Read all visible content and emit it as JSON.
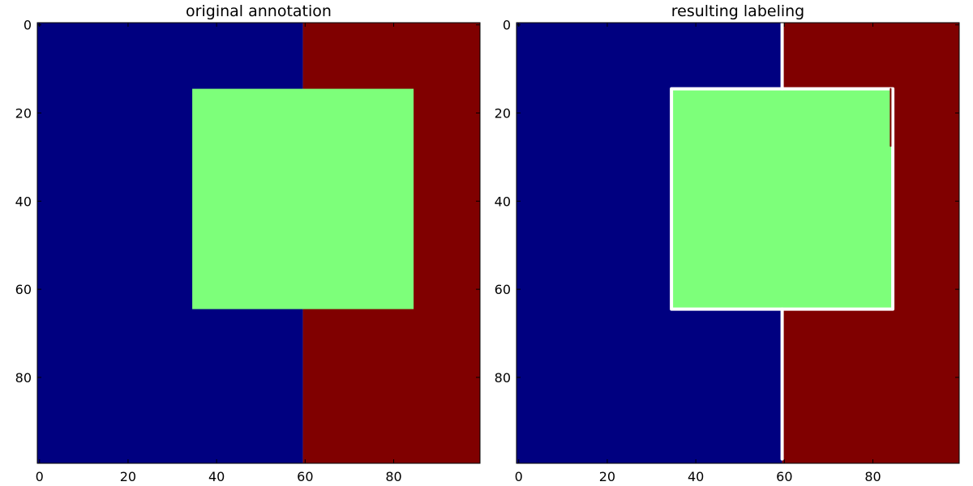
{
  "chart_data": [
    {
      "type": "heatmap",
      "title": "original annotation",
      "xlim": [
        0,
        99
      ],
      "ylim": [
        99,
        0
      ],
      "xticks": [
        0,
        20,
        40,
        60,
        80
      ],
      "yticks": [
        0,
        20,
        40,
        60,
        80
      ],
      "grid": false,
      "regions": [
        {
          "label": 0,
          "color": "#000080",
          "x": [
            0,
            60
          ],
          "y": [
            0,
            100
          ]
        },
        {
          "label": 2,
          "color": "#800000",
          "x": [
            60,
            100
          ],
          "y": [
            0,
            100
          ]
        },
        {
          "label": 1,
          "color": "#7dff7a",
          "x": [
            35,
            85
          ],
          "y": [
            15,
            65
          ]
        }
      ],
      "boundaries": []
    },
    {
      "type": "heatmap",
      "title": "resulting labeling",
      "xlim": [
        0,
        99
      ],
      "ylim": [
        99,
        0
      ],
      "xticks": [
        0,
        20,
        40,
        60,
        80
      ],
      "yticks": [
        0,
        20,
        40,
        60,
        80
      ],
      "grid": false,
      "regions": [
        {
          "label": 0,
          "color": "#000080",
          "x": [
            0,
            60
          ],
          "y": [
            0,
            100
          ]
        },
        {
          "label": 2,
          "color": "#800000",
          "x": [
            60,
            100
          ],
          "y": [
            0,
            100
          ]
        },
        {
          "label": 1,
          "color": "#7dff7a",
          "x": [
            35,
            85
          ],
          "y": [
            15,
            65
          ]
        }
      ],
      "boundaries": [
        {
          "color": "#ffffff",
          "points": [
            [
              35,
              15
            ],
            [
              85,
              15
            ],
            [
              85,
              65
            ],
            [
              35,
              65
            ],
            [
              35,
              15
            ]
          ]
        },
        {
          "color": "#ffffff",
          "points": [
            [
              60,
              0
            ],
            [
              60,
              15
            ]
          ]
        },
        {
          "color": "#ffffff",
          "points": [
            [
              60,
              65
            ],
            [
              60,
              99
            ]
          ]
        },
        {
          "color": "#800000",
          "points": [
            [
              84.5,
              15
            ],
            [
              84.5,
              28
            ]
          ]
        }
      ]
    }
  ]
}
